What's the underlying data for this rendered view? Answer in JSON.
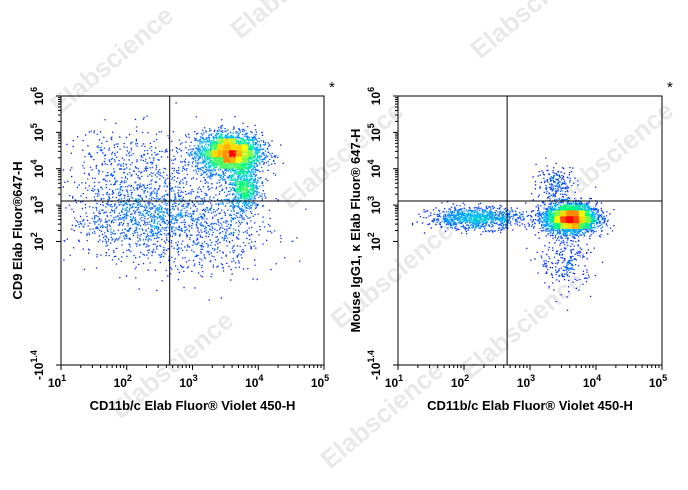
{
  "watermark": "Elabscience",
  "colors": {
    "low": "#0000ff",
    "mid": "#00e0ff",
    "high_mid": "#ffff00",
    "peak": "#ff0000",
    "gate": "#000000"
  },
  "chart_data": [
    {
      "type": "scatter",
      "subtype": "flow-cytometry-density-plot",
      "x_scale": "log",
      "y_scale": "log",
      "xlim": [
        10,
        100000
      ],
      "ylim": [
        0.04,
        1000000
      ],
      "xlabel": "CD11b/c Elab Fluor® Violet 450-H",
      "ylabel": "CD9 Elab Fluor®647-H",
      "x_ticks": [
        {
          "value": 10,
          "base": "10",
          "exp": "1"
        },
        {
          "value": 100,
          "base": "10",
          "exp": "2"
        },
        {
          "value": 1000,
          "base": "10",
          "exp": "3"
        },
        {
          "value": 10000,
          "base": "10",
          "exp": "4"
        },
        {
          "value": 100000,
          "base": "10",
          "exp": "5"
        }
      ],
      "y_ticks": [
        {
          "value": 0.04,
          "base": "-10",
          "exp": "1.4"
        },
        {
          "value": 100,
          "base": "10",
          "exp": "2"
        },
        {
          "value": 1000,
          "base": "10",
          "exp": "3"
        },
        {
          "value": 10000,
          "base": "10",
          "exp": "4"
        },
        {
          "value": 100000,
          "base": "10",
          "exp": "5"
        },
        {
          "value": 1000000,
          "base": "10",
          "exp": "6"
        }
      ],
      "quadrant_gate": {
        "x": 450,
        "y": 1300
      },
      "marker": "*",
      "populations": [
        {
          "center": [
            3500,
            28000
          ],
          "spread": [
            0.25,
            0.28
          ],
          "count": 2600
        },
        {
          "center": [
            6000,
            3000
          ],
          "spread": [
            0.12,
            0.35
          ],
          "count": 700
        },
        {
          "center": [
            250,
            500
          ],
          "spread": [
            0.65,
            0.6
          ],
          "count": 1500
        },
        {
          "center": [
            120,
            15000
          ],
          "spread": [
            0.55,
            0.5
          ],
          "count": 350
        },
        {
          "center": [
            2500,
            150
          ],
          "spread": [
            0.45,
            0.6
          ],
          "count": 300
        }
      ]
    },
    {
      "type": "scatter",
      "subtype": "flow-cytometry-density-plot",
      "x_scale": "log",
      "y_scale": "log",
      "xlim": [
        10,
        100000
      ],
      "ylim": [
        0.04,
        1000000
      ],
      "xlabel": "CD11b/c Elab Fluor® Violet 450-H",
      "ylabel": "Mouse IgG1, κ Elab Fluor® 647-H",
      "x_ticks": [
        {
          "value": 10,
          "base": "10",
          "exp": "1"
        },
        {
          "value": 100,
          "base": "10",
          "exp": "2"
        },
        {
          "value": 1000,
          "base": "10",
          "exp": "3"
        },
        {
          "value": 10000,
          "base": "10",
          "exp": "4"
        },
        {
          "value": 100000,
          "base": "10",
          "exp": "5"
        }
      ],
      "y_ticks": [
        {
          "value": 0.04,
          "base": "-10",
          "exp": "1.4"
        },
        {
          "value": 100,
          "base": "10",
          "exp": "2"
        },
        {
          "value": 1000,
          "base": "10",
          "exp": "3"
        },
        {
          "value": 10000,
          "base": "10",
          "exp": "4"
        },
        {
          "value": 100000,
          "base": "10",
          "exp": "5"
        },
        {
          "value": 1000000,
          "base": "10",
          "exp": "6"
        }
      ],
      "quadrant_gate": {
        "x": 450,
        "y": 1300
      },
      "marker": "*",
      "populations": [
        {
          "center": [
            4000,
            450
          ],
          "spread": [
            0.2,
            0.2
          ],
          "count": 3000
        },
        {
          "center": [
            150,
            450
          ],
          "spread": [
            0.35,
            0.15
          ],
          "count": 1000
        },
        {
          "center": [
            2500,
            4000
          ],
          "spread": [
            0.15,
            0.25
          ],
          "count": 200
        },
        {
          "center": [
            3500,
            30
          ],
          "spread": [
            0.2,
            0.4
          ],
          "count": 250
        }
      ]
    }
  ]
}
